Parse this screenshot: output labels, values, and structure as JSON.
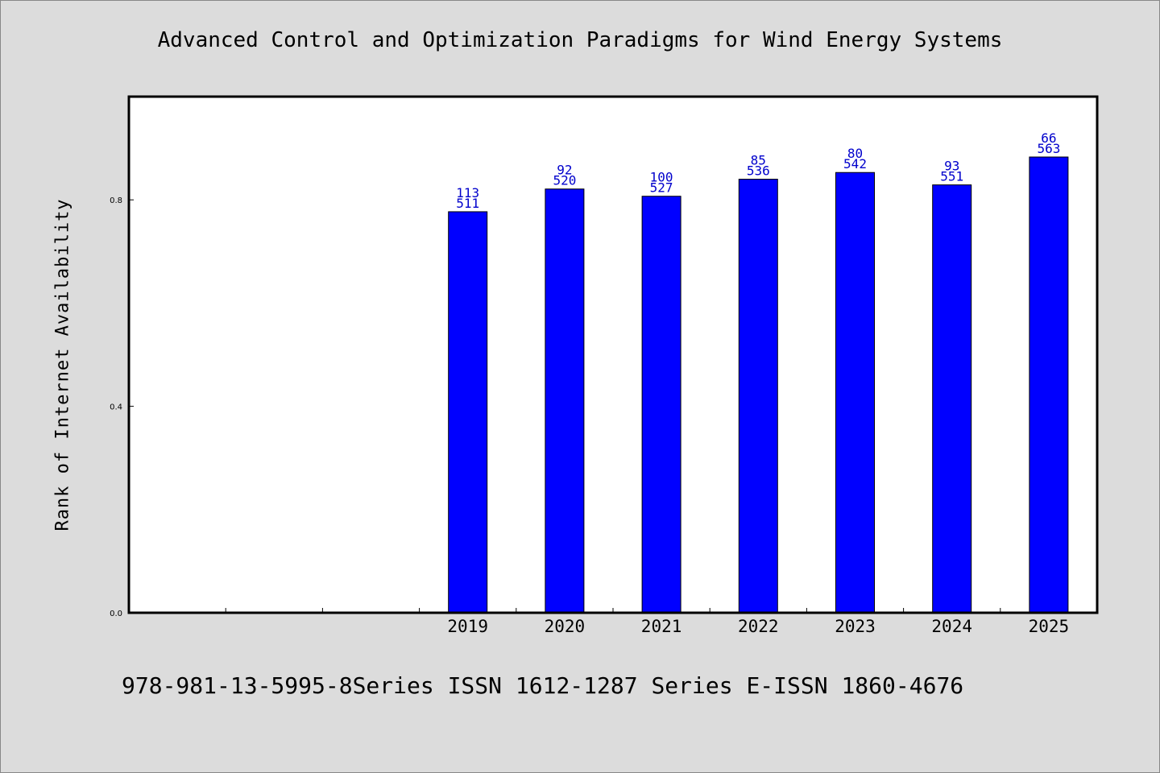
{
  "page": {
    "title": "Advanced Control and Optimization Paradigms for Wind Energy Systems",
    "footer": "978-981-13-5995-8Series ISSN 1612-1287 Series E-ISSN 1860-4676"
  },
  "chart_data": {
    "type": "bar",
    "title": "Advanced Control and Optimization Paradigms for Wind Energy Systems",
    "xlabel": "",
    "ylabel": "Rank of Internet Availability",
    "ylim": [
      0,
      1.0
    ],
    "yticks": [
      0.0,
      0.4,
      0.8
    ],
    "ytick_labels": [
      "0.0",
      "0.4",
      "0.8"
    ],
    "x_slots": [
      "",
      "",
      "",
      "2019",
      "2020",
      "2021",
      "2022",
      "2023",
      "2024",
      "2025"
    ],
    "categories": [
      "2019",
      "2020",
      "2021",
      "2022",
      "2023",
      "2024",
      "2025"
    ],
    "values": [
      0.777,
      0.821,
      0.807,
      0.84,
      0.853,
      0.829,
      0.883
    ],
    "labels_top": [
      "113",
      "92",
      "100",
      "85",
      "80",
      "93",
      "66"
    ],
    "labels_bottom": [
      "511",
      "520",
      "527",
      "536",
      "542",
      "551",
      "563"
    ],
    "colors": {
      "bar": "#0000ff",
      "bar_label": "#0000cc",
      "axis": "#000000",
      "plot_bg": "#ffffff"
    },
    "grid": false,
    "legend": "none"
  }
}
